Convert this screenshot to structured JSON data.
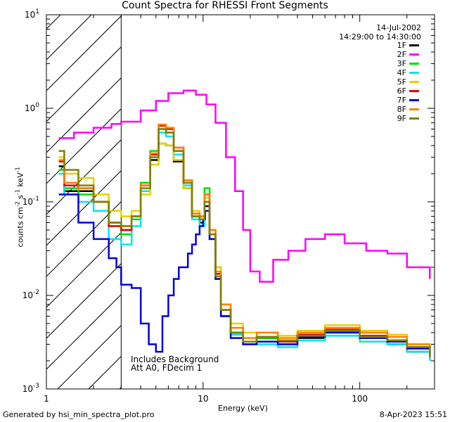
{
  "chart_data": {
    "type": "line",
    "title": "Count Spectra for RHESSI Front Segments",
    "xlabel": "Energy (keV)",
    "ylabel": "counts cm",
    "ylabel_sup1": "-2",
    "ylabel_mid": " s",
    "ylabel_sup2": "-1",
    "ylabel_end": " keV",
    "ylabel_sup3": "-1",
    "xscale": "log",
    "yscale": "log",
    "xlim": [
      1,
      300
    ],
    "ylim": [
      0.001,
      10
    ],
    "x_ticks": [
      {
        "value": 1,
        "label": "1"
      },
      {
        "value": 10,
        "label": "10"
      },
      {
        "value": 100,
        "label": "100"
      }
    ],
    "y_ticks": [
      {
        "value": 0.001,
        "base": "10",
        "exp": "-3"
      },
      {
        "value": 0.01,
        "base": "10",
        "exp": "-2"
      },
      {
        "value": 0.1,
        "base": "10",
        "exp": "-1"
      },
      {
        "value": 1,
        "base": "10",
        "exp": "0"
      },
      {
        "value": 10,
        "base": "10",
        "exp": "1"
      }
    ],
    "hatched_region_keV": [
      1,
      3
    ],
    "date": "14-Jul-2002",
    "time_range": "14:29:00 to 14:30:00",
    "annotations": [
      "Includes Background",
      "Att A0, FDecim 1"
    ],
    "series": [
      {
        "name": "1F",
        "color": "#000000",
        "points": [
          [
            1.2,
            0.24
          ],
          [
            1.3,
            0.13
          ],
          [
            1.6,
            0.13
          ],
          [
            2.0,
            0.1
          ],
          [
            2.5,
            0.06
          ],
          [
            3.0,
            0.05
          ],
          [
            3.5,
            0.07
          ],
          [
            4.0,
            0.13
          ],
          [
            4.6,
            0.28
          ],
          [
            5.2,
            0.42
          ],
          [
            5.8,
            0.4
          ],
          [
            6.5,
            0.27
          ],
          [
            7.5,
            0.14
          ],
          [
            8.5,
            0.07
          ],
          [
            9.5,
            0.06
          ],
          [
            10.2,
            0.09
          ],
          [
            11.0,
            0.04
          ],
          [
            12.0,
            0.015
          ],
          [
            13.0,
            0.006
          ],
          [
            15.0,
            0.004
          ],
          [
            18.0,
            0.003
          ],
          [
            22.0,
            0.0035
          ],
          [
            30.0,
            0.003
          ],
          [
            40.0,
            0.0035
          ],
          [
            60.0,
            0.004
          ],
          [
            100.0,
            0.0035
          ],
          [
            150.0,
            0.003
          ],
          [
            200.0,
            0.0025
          ],
          [
            280.0,
            0.002
          ]
        ]
      },
      {
        "name": "2F",
        "color": "#ff00ff",
        "points": [
          [
            1.2,
            0.48
          ],
          [
            1.5,
            0.55
          ],
          [
            2.0,
            0.62
          ],
          [
            2.6,
            0.68
          ],
          [
            3.0,
            0.72
          ],
          [
            4.0,
            0.95
          ],
          [
            5.0,
            1.2
          ],
          [
            6.0,
            1.45
          ],
          [
            7.5,
            1.55
          ],
          [
            9.0,
            1.4
          ],
          [
            10.5,
            1.1
          ],
          [
            12.0,
            0.7
          ],
          [
            14.0,
            0.3
          ],
          [
            16.0,
            0.13
          ],
          [
            18.0,
            0.05
          ],
          [
            20.0,
            0.018
          ],
          [
            23.0,
            0.014
          ],
          [
            28.0,
            0.024
          ],
          [
            35.0,
            0.03
          ],
          [
            45.0,
            0.04
          ],
          [
            60.0,
            0.045
          ],
          [
            80.0,
            0.036
          ],
          [
            110.0,
            0.03
          ],
          [
            150.0,
            0.028
          ],
          [
            200.0,
            0.02
          ],
          [
            280.0,
            0.015
          ]
        ]
      },
      {
        "name": "3F",
        "color": "#00dd00",
        "points": [
          [
            1.2,
            0.22
          ],
          [
            1.3,
            0.14
          ],
          [
            1.6,
            0.12
          ],
          [
            2.0,
            0.1
          ],
          [
            2.5,
            0.055
          ],
          [
            3.0,
            0.045
          ],
          [
            3.5,
            0.065
          ],
          [
            4.0,
            0.16
          ],
          [
            4.6,
            0.35
          ],
          [
            5.2,
            0.6
          ],
          [
            5.8,
            0.55
          ],
          [
            6.5,
            0.35
          ],
          [
            7.5,
            0.16
          ],
          [
            8.5,
            0.07
          ],
          [
            9.5,
            0.065
          ],
          [
            10.2,
            0.14
          ],
          [
            11.0,
            0.05
          ],
          [
            12.0,
            0.02
          ],
          [
            13.0,
            0.007
          ],
          [
            15.0,
            0.004
          ],
          [
            18.0,
            0.003
          ],
          [
            22.0,
            0.0035
          ],
          [
            30.0,
            0.0032
          ],
          [
            40.0,
            0.0038
          ],
          [
            60.0,
            0.0042
          ],
          [
            100.0,
            0.0035
          ],
          [
            150.0,
            0.0033
          ],
          [
            200.0,
            0.0028
          ],
          [
            280.0,
            0.0022
          ]
        ]
      },
      {
        "name": "4F",
        "color": "#00e5ee",
        "points": [
          [
            1.2,
            0.2
          ],
          [
            1.3,
            0.12
          ],
          [
            1.6,
            0.1
          ],
          [
            2.0,
            0.08
          ],
          [
            2.5,
            0.04
          ],
          [
            3.0,
            0.035
          ],
          [
            3.5,
            0.055
          ],
          [
            4.0,
            0.13
          ],
          [
            4.6,
            0.3
          ],
          [
            5.2,
            0.55
          ],
          [
            5.8,
            0.5
          ],
          [
            6.5,
            0.32
          ],
          [
            7.5,
            0.15
          ],
          [
            8.5,
            0.065
          ],
          [
            9.5,
            0.055
          ],
          [
            10.2,
            0.1
          ],
          [
            11.0,
            0.04
          ],
          [
            12.0,
            0.015
          ],
          [
            13.0,
            0.006
          ],
          [
            15.0,
            0.0038
          ],
          [
            18.0,
            0.003
          ],
          [
            22.0,
            0.003
          ],
          [
            30.0,
            0.0028
          ],
          [
            40.0,
            0.0033
          ],
          [
            60.0,
            0.0037
          ],
          [
            100.0,
            0.0032
          ],
          [
            150.0,
            0.003
          ],
          [
            200.0,
            0.0025
          ],
          [
            280.0,
            0.002
          ]
        ]
      },
      {
        "name": "5F",
        "color": "#e8d000",
        "points": [
          [
            1.2,
            0.3
          ],
          [
            1.3,
            0.2
          ],
          [
            1.6,
            0.18
          ],
          [
            2.0,
            0.12
          ],
          [
            2.5,
            0.08
          ],
          [
            3.0,
            0.07
          ],
          [
            3.5,
            0.08
          ],
          [
            4.0,
            0.12
          ],
          [
            4.6,
            0.25
          ],
          [
            5.2,
            0.42
          ],
          [
            5.8,
            0.4
          ],
          [
            6.5,
            0.28
          ],
          [
            7.5,
            0.14
          ],
          [
            8.5,
            0.08
          ],
          [
            9.5,
            0.07
          ],
          [
            10.2,
            0.11
          ],
          [
            11.0,
            0.05
          ],
          [
            12.0,
            0.02
          ],
          [
            13.0,
            0.008
          ],
          [
            15.0,
            0.005
          ],
          [
            18.0,
            0.004
          ],
          [
            22.0,
            0.004
          ],
          [
            30.0,
            0.0037
          ],
          [
            40.0,
            0.0042
          ],
          [
            60.0,
            0.0048
          ],
          [
            100.0,
            0.0042
          ],
          [
            150.0,
            0.0038
          ],
          [
            200.0,
            0.003
          ],
          [
            280.0,
            0.0025
          ]
        ]
      },
      {
        "name": "6F",
        "color": "#ee0000",
        "points": [
          [
            1.2,
            0.27
          ],
          [
            1.3,
            0.15
          ],
          [
            1.6,
            0.14
          ],
          [
            2.0,
            0.1
          ],
          [
            2.5,
            0.055
          ],
          [
            3.0,
            0.05
          ],
          [
            3.5,
            0.07
          ],
          [
            4.0,
            0.15
          ],
          [
            4.6,
            0.32
          ],
          [
            5.2,
            0.65
          ],
          [
            5.8,
            0.6
          ],
          [
            6.5,
            0.38
          ],
          [
            7.5,
            0.17
          ],
          [
            8.5,
            0.075
          ],
          [
            9.5,
            0.07
          ],
          [
            10.2,
            0.12
          ],
          [
            11.0,
            0.045
          ],
          [
            12.0,
            0.017
          ],
          [
            13.0,
            0.007
          ],
          [
            15.0,
            0.004
          ],
          [
            18.0,
            0.0032
          ],
          [
            22.0,
            0.0036
          ],
          [
            30.0,
            0.0032
          ],
          [
            40.0,
            0.0038
          ],
          [
            60.0,
            0.0043
          ],
          [
            100.0,
            0.0037
          ],
          [
            150.0,
            0.0033
          ],
          [
            200.0,
            0.0028
          ],
          [
            280.0,
            0.0023
          ]
        ]
      },
      {
        "name": "7F",
        "color": "#0000dd",
        "points": [
          [
            1.2,
            0.12
          ],
          [
            1.3,
            0.12
          ],
          [
            1.6,
            0.06
          ],
          [
            2.0,
            0.04
          ],
          [
            2.5,
            0.025
          ],
          [
            2.8,
            0.02
          ],
          [
            3.0,
            0.013
          ],
          [
            3.5,
            0.012
          ],
          [
            4.0,
            0.005
          ],
          [
            4.5,
            0.003
          ],
          [
            5.0,
            0.0025
          ],
          [
            5.5,
            0.006
          ],
          [
            6.0,
            0.01
          ],
          [
            6.5,
            0.015
          ],
          [
            7.0,
            0.02
          ],
          [
            7.5,
            0.02
          ],
          [
            8.0,
            0.028
          ],
          [
            8.5,
            0.035
          ],
          [
            9.0,
            0.045
          ],
          [
            9.5,
            0.055
          ],
          [
            10.0,
            0.065
          ],
          [
            10.3,
            0.08
          ],
          [
            11.0,
            0.04
          ],
          [
            12.0,
            0.015
          ],
          [
            13.0,
            0.006
          ],
          [
            15.0,
            0.0035
          ],
          [
            18.0,
            0.003
          ],
          [
            22.0,
            0.0032
          ],
          [
            30.0,
            0.003
          ],
          [
            40.0,
            0.0036
          ],
          [
            60.0,
            0.004
          ],
          [
            100.0,
            0.0035
          ],
          [
            150.0,
            0.0032
          ],
          [
            200.0,
            0.0027
          ],
          [
            280.0,
            0.0022
          ]
        ]
      },
      {
        "name": "8F",
        "color": "#ff8000",
        "points": [
          [
            1.2,
            0.28
          ],
          [
            1.3,
            0.16
          ],
          [
            1.6,
            0.14
          ],
          [
            2.0,
            0.1
          ],
          [
            2.5,
            0.06
          ],
          [
            3.0,
            0.055
          ],
          [
            3.5,
            0.07
          ],
          [
            4.0,
            0.15
          ],
          [
            4.6,
            0.33
          ],
          [
            5.2,
            0.67
          ],
          [
            5.8,
            0.62
          ],
          [
            6.5,
            0.38
          ],
          [
            7.5,
            0.17
          ],
          [
            8.5,
            0.075
          ],
          [
            9.5,
            0.07
          ],
          [
            10.2,
            0.12
          ],
          [
            11.0,
            0.05
          ],
          [
            12.0,
            0.018
          ],
          [
            13.0,
            0.008
          ],
          [
            15.0,
            0.0045
          ],
          [
            18.0,
            0.0035
          ],
          [
            22.0,
            0.004
          ],
          [
            30.0,
            0.0035
          ],
          [
            40.0,
            0.004
          ],
          [
            60.0,
            0.0045
          ],
          [
            100.0,
            0.004
          ],
          [
            150.0,
            0.0036
          ],
          [
            200.0,
            0.003
          ],
          [
            280.0,
            0.0024
          ]
        ]
      },
      {
        "name": "9F",
        "color": "#808000",
        "points": [
          [
            1.2,
            0.35
          ],
          [
            1.3,
            0.22
          ],
          [
            1.6,
            0.15
          ],
          [
            2.0,
            0.1
          ],
          [
            2.5,
            0.06
          ],
          [
            3.0,
            0.055
          ],
          [
            3.5,
            0.07
          ],
          [
            4.0,
            0.14
          ],
          [
            4.6,
            0.3
          ],
          [
            5.2,
            0.6
          ],
          [
            5.8,
            0.55
          ],
          [
            6.5,
            0.35
          ],
          [
            7.5,
            0.16
          ],
          [
            8.5,
            0.07
          ],
          [
            9.5,
            0.065
          ],
          [
            10.2,
            0.1
          ],
          [
            11.0,
            0.045
          ],
          [
            12.0,
            0.016
          ],
          [
            13.0,
            0.007
          ],
          [
            15.0,
            0.004
          ],
          [
            18.0,
            0.0032
          ],
          [
            22.0,
            0.0036
          ],
          [
            30.0,
            0.0033
          ],
          [
            40.0,
            0.0037
          ],
          [
            60.0,
            0.0042
          ],
          [
            100.0,
            0.0036
          ],
          [
            150.0,
            0.0033
          ],
          [
            200.0,
            0.0028
          ],
          [
            280.0,
            0.0022
          ]
        ]
      }
    ]
  },
  "footer": {
    "left": "Generated by hsi_min_spectra_plot.pro",
    "right": "8-Apr-2023 15:51"
  }
}
